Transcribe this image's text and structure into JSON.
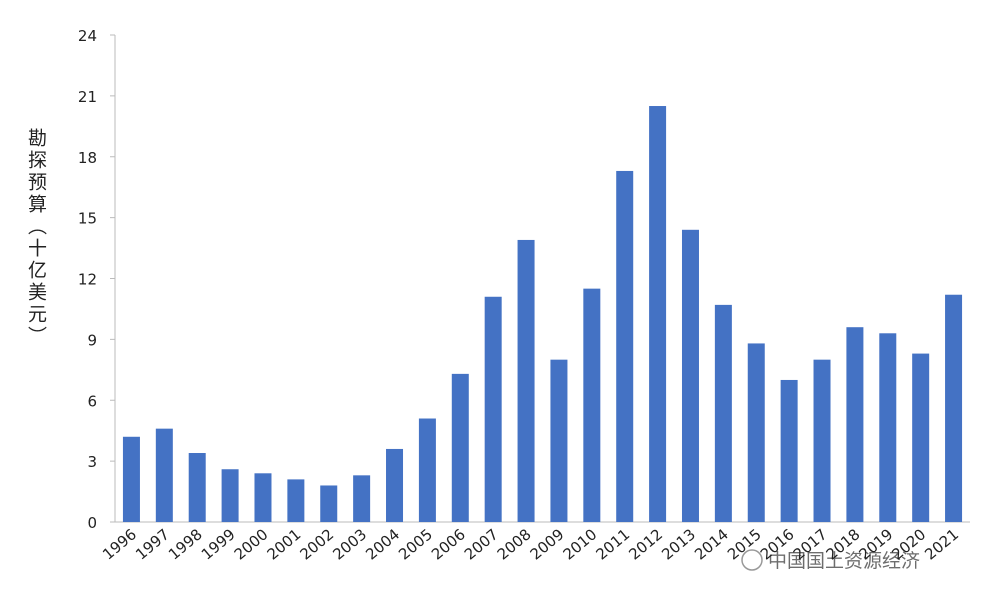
{
  "chart_data": {
    "type": "bar",
    "y_label": "勘探预算（十亿美元）",
    "categories": [
      "1996",
      "1997",
      "1998",
      "1999",
      "2000",
      "2001",
      "2002",
      "2003",
      "2004",
      "2005",
      "2006",
      "2007",
      "2008",
      "2009",
      "2010",
      "2011",
      "2012",
      "2013",
      "2014",
      "2015",
      "2016",
      "2017",
      "2018",
      "2019",
      "2020",
      "2021"
    ],
    "values": [
      4.2,
      4.6,
      3.4,
      2.6,
      2.4,
      2.1,
      1.8,
      2.3,
      3.6,
      5.1,
      7.3,
      11.1,
      13.9,
      8.0,
      11.5,
      17.3,
      20.5,
      14.4,
      10.7,
      8.8,
      7.0,
      8.0,
      9.6,
      9.3,
      8.3,
      11.2
    ],
    "color": "#4472c4",
    "ylim": [
      0,
      24
    ],
    "yticks": [
      0,
      3,
      6,
      9,
      12,
      15,
      18,
      21,
      24
    ],
    "grid": false,
    "watermark": "中国国土资源经济"
  }
}
